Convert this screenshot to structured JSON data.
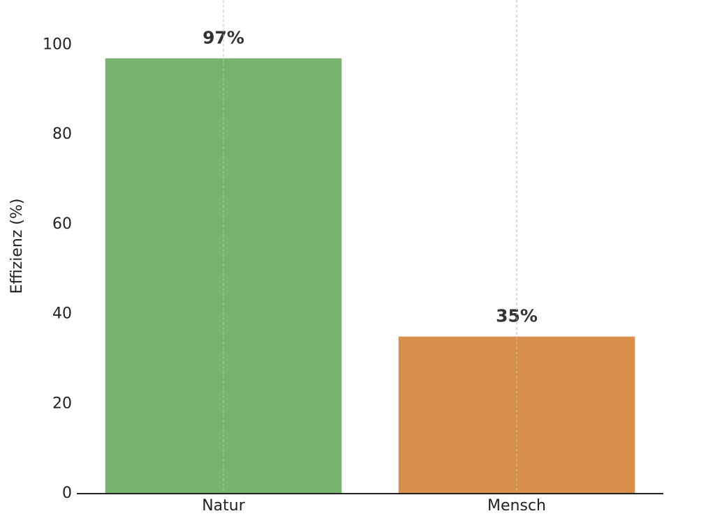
{
  "chart_data": {
    "type": "bar",
    "y_label": "Effizienz (%)",
    "categories": [
      "Natur",
      "Mensch"
    ],
    "values": [
      97,
      35
    ],
    "value_labels": [
      "97%",
      "35%"
    ],
    "colors": [
      "#77b46d",
      "#d98f4c"
    ],
    "ylim": [
      0,
      110
    ],
    "yticks": [
      0,
      20,
      40,
      60,
      80,
      100
    ],
    "x_grid": true
  }
}
